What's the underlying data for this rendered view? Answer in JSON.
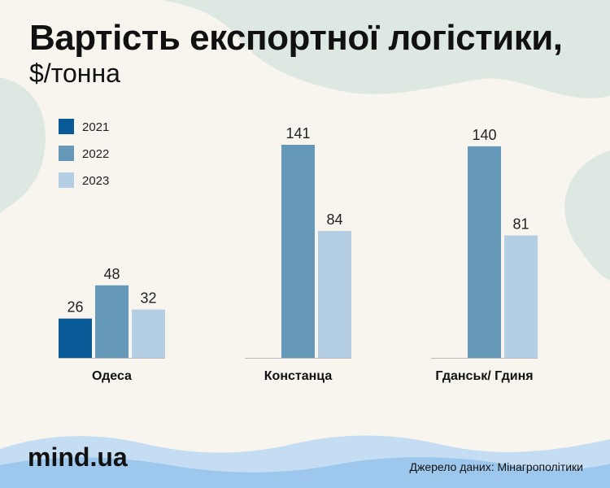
{
  "title": "Вартість експортної логістики,",
  "subtitle": "$/тонна",
  "brand": "mind.ua",
  "source": "Джерело даних: Мінагрополітики",
  "colors": {
    "background": "#f8f5ee",
    "blob": "#dde8e2",
    "wave_light": "#c5ddf2",
    "wave_dark": "#9dc7ec",
    "baseline": "#bbbbbb"
  },
  "chart_data": {
    "type": "bar",
    "categories": [
      "Одеса",
      "Констанца",
      "Гданськ/ Гдиня"
    ],
    "series": [
      {
        "name": "2021",
        "color": "#0b5a98",
        "values": [
          26,
          null,
          null
        ]
      },
      {
        "name": "2022",
        "color": "#6699b8",
        "values": [
          48,
          141,
          140
        ]
      },
      {
        "name": "2023",
        "color": "#b4cfe3",
        "values": [
          32,
          84,
          81
        ]
      }
    ],
    "ylim": [
      0,
      141
    ],
    "grid": false,
    "legend": "top-left",
    "data_labels": true
  }
}
